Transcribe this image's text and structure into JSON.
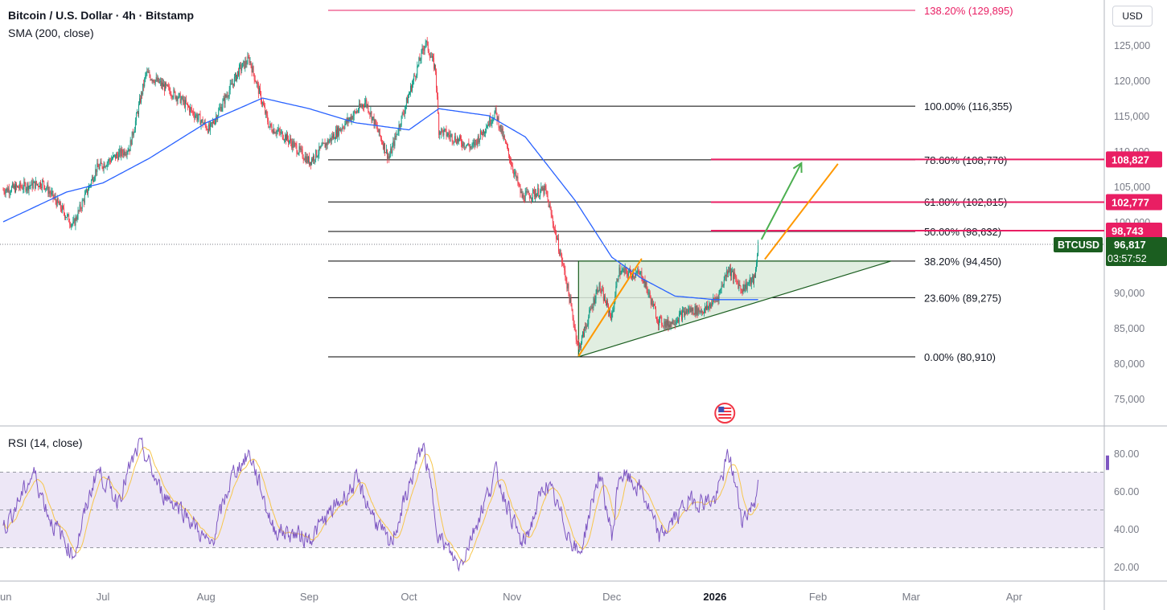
{
  "header": {
    "title": "Bitcoin / U.S. Dollar · 4h · Bitstamp",
    "indicator": "SMA (200, close)",
    "rsi_label": "RSI (14, close)",
    "currency": "USD"
  },
  "colors": {
    "up": "#089981",
    "down": "#f23645",
    "sma": "#2962ff",
    "fib_line": "#000000",
    "fib_top": "#e91e63",
    "resistance": "#e91e63",
    "triangle_fill": "#dcebdc",
    "triangle_stroke": "#1b5e20",
    "orange": "#ff9800",
    "green_arrow": "#4caf50",
    "rsi_line": "#7e57c2",
    "rsi_ma": "#f7c64c",
    "rsi_band": "#ede7f6",
    "btc_tag": "#1b5e20"
  },
  "chart_data": [
    {
      "type": "candlestick",
      "title": "Bitcoin / U.S. Dollar · 4h · Bitstamp",
      "y_axis": {
        "ticks": [
          75000,
          80000,
          85000,
          90000,
          95000,
          100000,
          105000,
          110000,
          115000,
          120000,
          125000
        ],
        "tick_labels": [
          "75,000",
          "80,000",
          "85,000",
          "90,000",
          "95,000",
          "100,000",
          "105,000",
          "110,000",
          "115,000",
          "120,000",
          "125,000"
        ]
      },
      "x_axis": {
        "labels": [
          "Jun",
          "Jul",
          "Aug",
          "Sep",
          "Oct",
          "Nov",
          "Dec",
          "2026",
          "Feb",
          "Mar",
          "Apr"
        ],
        "bold_label": "2026"
      },
      "price_anchors": [
        [
          "2025-06-01",
          104500
        ],
        [
          "2025-06-13",
          105500
        ],
        [
          "2025-06-22",
          99500
        ],
        [
          "2025-06-29",
          107500
        ],
        [
          "2025-07-09",
          110500
        ],
        [
          "2025-07-14",
          121000
        ],
        [
          "2025-07-24",
          117500
        ],
        [
          "2025-08-02",
          113000
        ],
        [
          "2025-08-11",
          121500
        ],
        [
          "2025-08-14",
          123000
        ],
        [
          "2025-08-20",
          113500
        ],
        [
          "2025-08-25",
          112000
        ],
        [
          "2025-09-01",
          108500
        ],
        [
          "2025-09-18",
          117000
        ],
        [
          "2025-09-25",
          109000
        ],
        [
          "2025-10-01",
          118000
        ],
        [
          "2025-10-06",
          125500
        ],
        [
          "2025-10-09",
          121500
        ],
        [
          "2025-10-10",
          113000
        ],
        [
          "2025-10-20",
          110500
        ],
        [
          "2025-10-27",
          115500
        ],
        [
          "2025-11-04",
          103500
        ],
        [
          "2025-11-11",
          104500
        ],
        [
          "2025-11-17",
          92500
        ],
        [
          "2025-11-21",
          82000
        ],
        [
          "2025-11-27",
          91000
        ],
        [
          "2025-12-01",
          86500
        ],
        [
          "2025-12-03",
          93000
        ],
        [
          "2025-12-10",
          92500
        ],
        [
          "2025-12-15",
          86000
        ],
        [
          "2025-12-18",
          85500
        ],
        [
          "2025-12-24",
          87500
        ],
        [
          "2025-12-29",
          87500
        ],
        [
          "2026-01-02",
          89500
        ],
        [
          "2026-01-05",
          93500
        ],
        [
          "2026-01-09",
          90500
        ],
        [
          "2026-01-13",
          92000
        ],
        [
          "2026-01-14",
          96817
        ]
      ],
      "sma_200": [
        [
          "2025-06-01",
          100000
        ],
        [
          "2025-06-20",
          104200
        ],
        [
          "2025-07-01",
          105500
        ],
        [
          "2025-07-15",
          109000
        ],
        [
          "2025-08-01",
          114000
        ],
        [
          "2025-08-18",
          117500
        ],
        [
          "2025-09-01",
          116000
        ],
        [
          "2025-09-15",
          114000
        ],
        [
          "2025-10-01",
          113000
        ],
        [
          "2025-10-10",
          116000
        ],
        [
          "2025-10-25",
          115000
        ],
        [
          "2025-11-05",
          112000
        ],
        [
          "2025-11-20",
          103000
        ],
        [
          "2025-12-01",
          95000
        ],
        [
          "2025-12-10",
          92000
        ],
        [
          "2025-12-20",
          89500
        ],
        [
          "2026-01-01",
          89000
        ],
        [
          "2026-01-14",
          89000
        ]
      ],
      "fibonacci": [
        {
          "label": "0.00% (80,910)",
          "value": 80910
        },
        {
          "label": "23.60% (89,275)",
          "value": 89275
        },
        {
          "label": "38.20% (94,450)",
          "value": 94450
        },
        {
          "label": "50.00% (98,632)",
          "value": 98632
        },
        {
          "label": "61.80% (102,815)",
          "value": 102815
        },
        {
          "label": "78.60% (108,770)",
          "value": 108770
        },
        {
          "label": "100.00% (116,355)",
          "value": 116355
        },
        {
          "label": "138.20% (129,895)",
          "value": 129895
        }
      ],
      "resistance_levels": [
        {
          "label": "108,827",
          "value": 108827
        },
        {
          "label": "102,777",
          "value": 102777
        },
        {
          "label": "98,743",
          "value": 98743
        }
      ],
      "current_price": {
        "symbol": "BTCUSD",
        "label": "96,817",
        "value": 96817,
        "countdown": "03:57:52"
      },
      "ascending_triangle": {
        "vertices": [
          [
            "2025-11-21",
            80910
          ],
          [
            "2025-11-21",
            94450
          ],
          [
            "2026-02-23",
            94450
          ]
        ]
      },
      "orange_channel": [
        {
          "from": [
            "2025-11-21",
            81000
          ],
          "to": [
            "2025-12-10",
            94800
          ]
        },
        {
          "from": [
            "2026-01-16",
            94700
          ],
          "to": [
            "2026-02-07",
            108200
          ]
        }
      ],
      "green_arrow": {
        "from": [
          "2026-01-15",
          97500
        ],
        "to": [
          "2026-01-27",
          108300
        ]
      },
      "event_marker": "us-flag-icon"
    },
    {
      "type": "line",
      "title": "RSI (14, close)",
      "y_axis": {
        "ticks": [
          20,
          40,
          60,
          80
        ],
        "tick_labels": [
          "20.00",
          "40.00",
          "60.00",
          "80.00"
        ]
      },
      "bands": {
        "upper": 70,
        "middle": 50,
        "lower": 30
      },
      "rsi_anchors": [
        [
          "2025-06-01",
          40
        ],
        [
          "2025-06-10",
          70
        ],
        [
          "2025-06-15",
          45
        ],
        [
          "2025-06-22",
          26
        ],
        [
          "2025-06-29",
          72
        ],
        [
          "2025-07-05",
          55
        ],
        [
          "2025-07-12",
          85
        ],
        [
          "2025-07-18",
          60
        ],
        [
          "2025-07-25",
          50
        ],
        [
          "2025-08-02",
          30
        ],
        [
          "2025-08-09",
          70
        ],
        [
          "2025-08-14",
          80
        ],
        [
          "2025-08-21",
          40
        ],
        [
          "2025-09-01",
          35
        ],
        [
          "2025-09-15",
          65
        ],
        [
          "2025-09-25",
          30
        ],
        [
          "2025-10-05",
          85
        ],
        [
          "2025-10-10",
          35
        ],
        [
          "2025-10-16",
          20
        ],
        [
          "2025-10-27",
          70
        ],
        [
          "2025-11-04",
          30
        ],
        [
          "2025-11-11",
          65
        ],
        [
          "2025-11-21",
          25
        ],
        [
          "2025-11-27",
          70
        ],
        [
          "2025-12-01",
          35
        ],
        [
          "2025-12-03",
          70
        ],
        [
          "2025-12-10",
          60
        ],
        [
          "2025-12-15",
          35
        ],
        [
          "2025-12-24",
          55
        ],
        [
          "2026-01-01",
          55
        ],
        [
          "2026-01-05",
          80
        ],
        [
          "2026-01-09",
          45
        ],
        [
          "2026-01-13",
          55
        ],
        [
          "2026-01-14",
          75
        ]
      ],
      "last_value": 75
    }
  ]
}
